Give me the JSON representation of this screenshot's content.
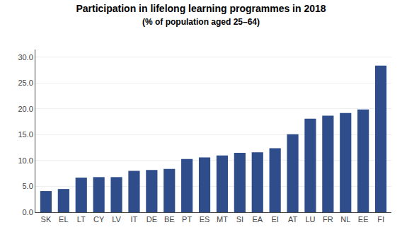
{
  "chart_data": {
    "type": "bar",
    "title": "Participation in lifelong learning programmes in 2018",
    "subtitle": "(% of population aged 25–64)",
    "categories": [
      "SK",
      "EL",
      "LT",
      "CY",
      "LV",
      "IT",
      "DE",
      "BE",
      "PT",
      "ES",
      "MT",
      "SI",
      "EA",
      "EI",
      "AT",
      "LU",
      "FR",
      "NL",
      "EE",
      "FI"
    ],
    "values": [
      4.1,
      4.5,
      6.7,
      6.8,
      6.8,
      8.0,
      8.2,
      8.4,
      10.3,
      10.6,
      11.0,
      11.5,
      11.6,
      12.4,
      15.1,
      18.1,
      18.7,
      19.2,
      19.9,
      28.4
    ],
    "color": "#2E4D8A",
    "ylim": [
      0,
      31.5
    ],
    "yticks": [
      {
        "value": 0,
        "label": "0.0"
      },
      {
        "value": 5,
        "label": "5.0"
      },
      {
        "value": 10,
        "label": "10.0"
      },
      {
        "value": 15,
        "label": "15.0"
      },
      {
        "value": 20,
        "label": "20.0"
      },
      {
        "value": 25,
        "label": "25.0"
      },
      {
        "value": 30,
        "label": "30.0"
      }
    ],
    "grid": true
  }
}
